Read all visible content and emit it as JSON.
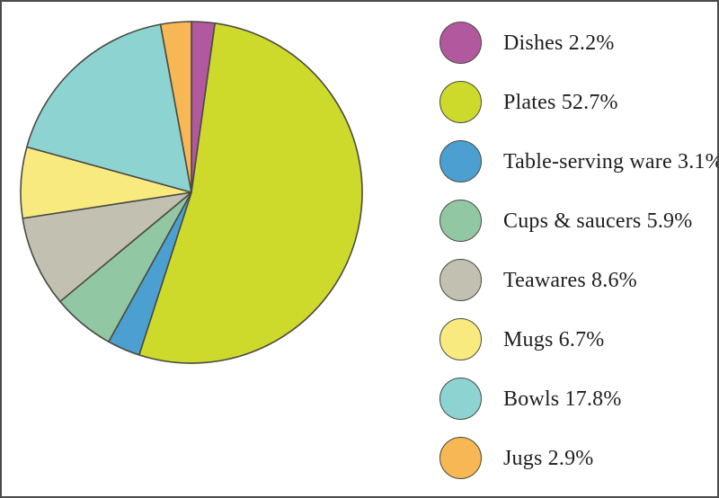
{
  "frame": {
    "background_color": "#ffffff",
    "border_color": "#4b4b4b"
  },
  "chart_data": {
    "type": "pie",
    "title": "",
    "direction": "clockwise",
    "start_angle": "12-o-clock",
    "legend_position": "right",
    "stroke_color": "#4a4a42",
    "items": [
      {
        "label": "Dishes",
        "value_pct": 2.2,
        "color": "#b1589e",
        "legend_label": "Dishes 2.2%"
      },
      {
        "label": "Plates",
        "value_pct": 52.7,
        "color": "#cdda2c",
        "legend_label": "Plates 52.7%"
      },
      {
        "label": "Table-serving ware",
        "value_pct": 3.1,
        "color": "#4ba0d1",
        "legend_label": "Table-serving ware 3.1%"
      },
      {
        "label": "Cups & saucers",
        "value_pct": 5.9,
        "color": "#92c7a3",
        "legend_label": "Cups & saucers 5.9%"
      },
      {
        "label": "Teawares",
        "value_pct": 8.6,
        "color": "#c2c0b1",
        "legend_label": "Teawares 8.6%"
      },
      {
        "label": "Mugs",
        "value_pct": 6.7,
        "color": "#f9ea80",
        "legend_label": "Mugs 6.7%"
      },
      {
        "label": "Bowls",
        "value_pct": 17.8,
        "color": "#8dd3d2",
        "legend_label": "Bowls 17.8%"
      },
      {
        "label": "Jugs",
        "value_pct": 2.9,
        "color": "#f7b754",
        "legend_label": "Jugs 2.9%"
      }
    ]
  }
}
